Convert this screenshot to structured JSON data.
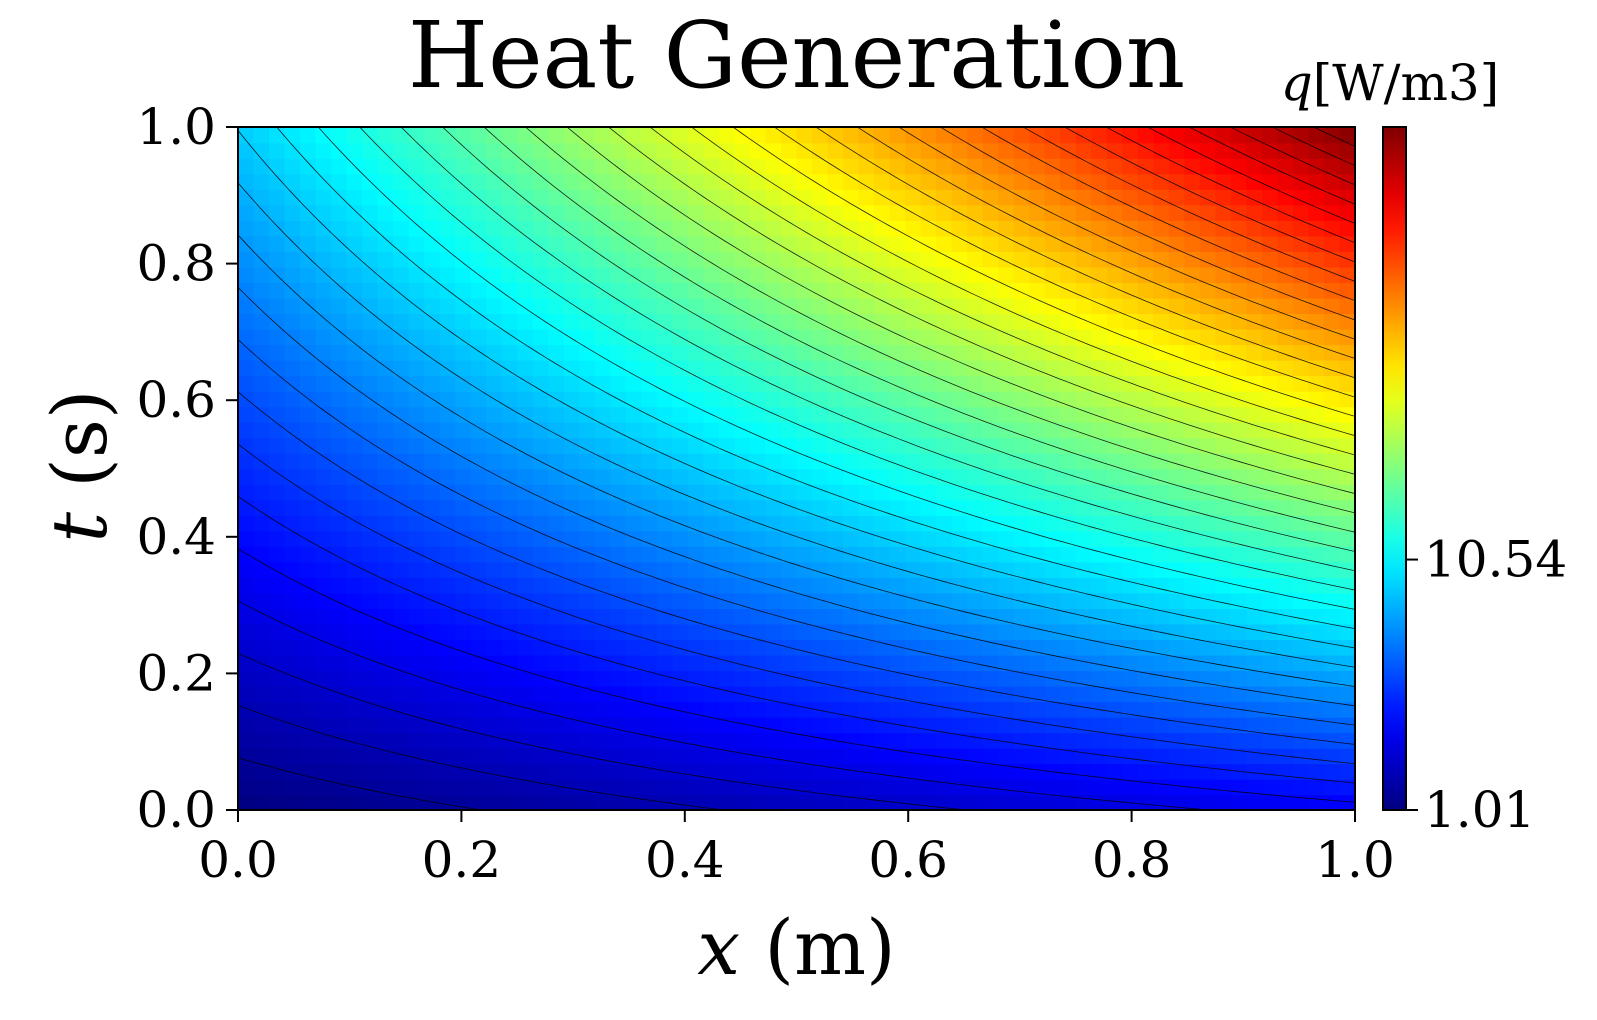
{
  "chart_data": {
    "type": "heatmap",
    "subtype": "filled-contour",
    "title": "Heat Generation",
    "xlabel": {
      "symbol": "x",
      "unit": "(m)"
    },
    "ylabel": {
      "symbol": "t",
      "unit": "(s)"
    },
    "xlim": [
      0.0,
      1.0
    ],
    "ylim": [
      0.0,
      1.0
    ],
    "xticks": [
      "0.0",
      "0.2",
      "0.4",
      "0.6",
      "0.8",
      "1.0"
    ],
    "yticks": [
      "0.0",
      "0.2",
      "0.4",
      "0.6",
      "0.8",
      "1.0"
    ],
    "colorbar": {
      "label": {
        "symbol": "q",
        "unit": "[W/m3]"
      },
      "colormap": "jet",
      "min": 1.01,
      "max": 27.0,
      "ticks": [
        {
          "value": 1.01,
          "label": "1.01"
        },
        {
          "value": 10.54,
          "label": "10.54"
        }
      ]
    },
    "field": {
      "description": "q(x,t) increases toward x=1, t=1",
      "corner_values": {
        "x0_t0": 1.01,
        "x1_t0": 4.0,
        "x0_t1": 9.5,
        "x1_t1": 27.0
      }
    },
    "contour_levels": 40,
    "contour_color": "#000000",
    "grid": false
  }
}
